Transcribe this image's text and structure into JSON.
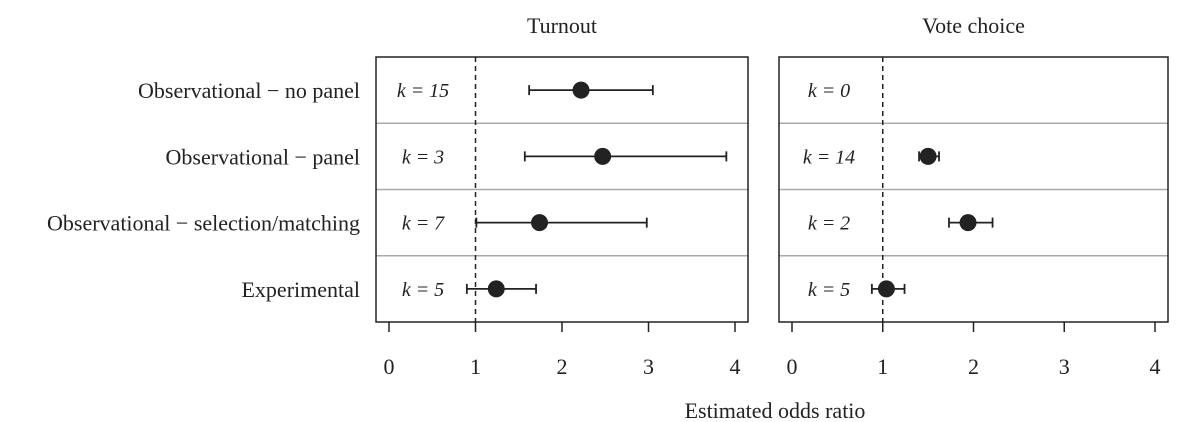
{
  "figure": {
    "xlabel": "Estimated odds ratio"
  },
  "chart_data": {
    "type": "scatter",
    "style": "dot-and-whisker",
    "xlabel": "Estimated odds ratio",
    "categories": [
      "Observational − no panel",
      "Observational − panel",
      "Observational − selection/matching",
      "Experimental"
    ],
    "reference_line": {
      "x": 1,
      "style": "dashed"
    },
    "grid": false,
    "panels": [
      {
        "title": "Turnout",
        "xlim": [
          0,
          4
        ],
        "xticks": [
          0,
          1,
          2,
          3,
          4
        ],
        "rows": [
          {
            "label": "k = 15",
            "estimate": 2.22,
            "ci_low": 1.62,
            "ci_high": 3.05
          },
          {
            "label": "k = 3",
            "estimate": 2.47,
            "ci_low": 1.57,
            "ci_high": 3.9
          },
          {
            "label": "k = 7",
            "estimate": 1.74,
            "ci_low": 1.01,
            "ci_high": 2.98
          },
          {
            "label": "k = 5",
            "estimate": 1.24,
            "ci_low": 0.9,
            "ci_high": 1.7
          }
        ]
      },
      {
        "title": "Vote choice",
        "xlim": [
          0,
          4
        ],
        "xticks": [
          0,
          1,
          2,
          3,
          4
        ],
        "rows": [
          {
            "label": "k = 0",
            "estimate": null,
            "ci_low": null,
            "ci_high": null
          },
          {
            "label": "k = 14",
            "estimate": 1.5,
            "ci_low": 1.4,
            "ci_high": 1.62
          },
          {
            "label": "k = 2",
            "estimate": 1.94,
            "ci_low": 1.73,
            "ci_high": 2.21
          },
          {
            "label": "k = 5",
            "estimate": 1.04,
            "ci_low": 0.88,
            "ci_high": 1.24
          }
        ]
      }
    ],
    "colors": {
      "point": "#222222",
      "frame": "#222222",
      "separator": "#aaaaaa"
    }
  }
}
